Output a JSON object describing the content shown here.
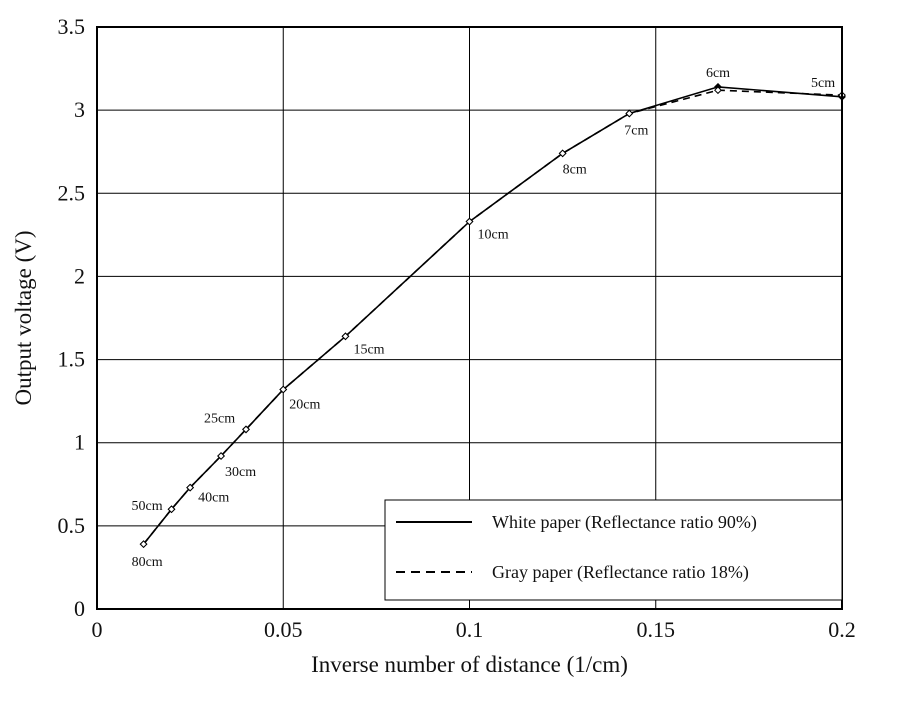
{
  "chart_data": {
    "type": "line",
    "xlabel": "Inverse number of distance (1/cm)",
    "ylabel": "Output voltage (V)",
    "xlim": [
      0,
      0.2
    ],
    "ylim": [
      0,
      3.5
    ],
    "x_ticks": [
      0,
      0.05,
      0.1,
      0.15,
      0.2
    ],
    "x_tick_labels": [
      "0",
      "0.05",
      "0.1",
      "0.15",
      "0.2"
    ],
    "y_ticks": [
      0,
      0.5,
      1,
      1.5,
      2,
      2.5,
      3,
      3.5
    ],
    "y_tick_labels": [
      "0",
      "0.5",
      "1",
      "1.5",
      "2",
      "2.5",
      "3",
      "3.5"
    ],
    "grid": true,
    "legend_position": "bottom-right",
    "series": [
      {
        "name": "White paper (Reflectance ratio 90%)",
        "line_style": "solid",
        "color": "#000000",
        "x": [
          0.0125,
          0.02,
          0.025,
          0.0333,
          0.04,
          0.05,
          0.0667,
          0.1,
          0.125,
          0.1429,
          0.1667,
          0.2
        ],
        "y": [
          0.39,
          0.6,
          0.73,
          0.92,
          1.08,
          1.32,
          1.64,
          2.33,
          2.74,
          2.98,
          3.14,
          3.08
        ]
      },
      {
        "name": "Gray paper (Reflectance ratio 18%)",
        "line_style": "dashed",
        "color": "#000000",
        "x": [
          0.0125,
          0.02,
          0.025,
          0.0333,
          0.04,
          0.05,
          0.0667,
          0.1,
          0.125,
          0.1429,
          0.1667,
          0.2
        ],
        "y": [
          0.39,
          0.6,
          0.73,
          0.92,
          1.08,
          1.32,
          1.64,
          2.33,
          2.74,
          2.98,
          3.12,
          3.09
        ]
      }
    ],
    "point_labels": [
      {
        "text": "80cm",
        "x": 0.0125,
        "y": 0.39
      },
      {
        "text": "50cm",
        "x": 0.02,
        "y": 0.6
      },
      {
        "text": "40cm",
        "x": 0.025,
        "y": 0.73
      },
      {
        "text": "30cm",
        "x": 0.0333,
        "y": 0.92
      },
      {
        "text": "25cm",
        "x": 0.04,
        "y": 1.08
      },
      {
        "text": "20cm",
        "x": 0.05,
        "y": 1.32
      },
      {
        "text": "15cm",
        "x": 0.0667,
        "y": 1.64
      },
      {
        "text": "10cm",
        "x": 0.1,
        "y": 2.33
      },
      {
        "text": "8cm",
        "x": 0.125,
        "y": 2.74
      },
      {
        "text": "7cm",
        "x": 0.1429,
        "y": 2.98
      },
      {
        "text": "6cm",
        "x": 0.1667,
        "y": 3.14
      },
      {
        "text": "5cm",
        "x": 0.2,
        "y": 3.08
      }
    ]
  }
}
